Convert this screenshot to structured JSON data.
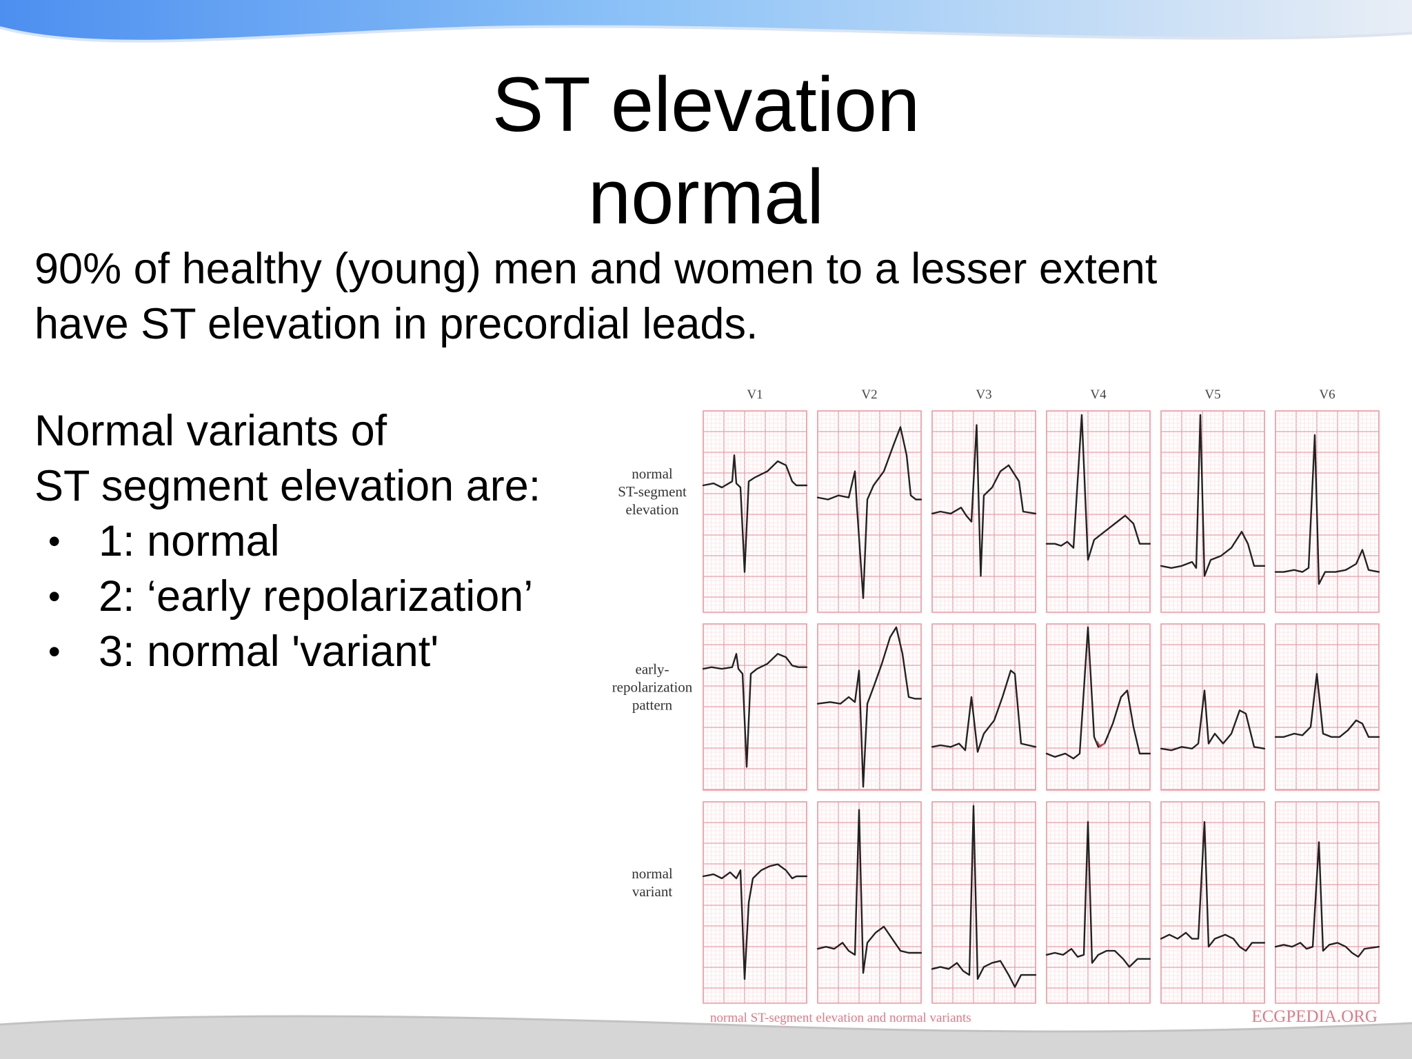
{
  "slide": {
    "title_lines": [
      "ST elevation",
      "normal"
    ],
    "intro_lines": [
      "90% of healthy (young) men and women to a lesser extent",
      "have ST elevation in precordial leads."
    ],
    "variants_heading_lines": [
      "Normal variants of",
      "ST segment elevation are:"
    ],
    "bullets": [
      "1: normal",
      "2: ‘early repolarization’",
      "3: normal 'variant'"
    ],
    "bullet_glyph": "•"
  },
  "figure": {
    "leads": [
      "V1",
      "V2",
      "V3",
      "V4",
      "V5",
      "V6"
    ],
    "rows": [
      {
        "label_lines": [
          "normal",
          "ST-segment",
          "elevation"
        ]
      },
      {
        "label_lines": [
          "early-",
          "repolarization",
          "pattern"
        ]
      },
      {
        "label_lines": [
          "normal",
          "variant"
        ]
      }
    ],
    "caption": "normal ST-segment elevation and normal variants",
    "logo": "ECGPEDIA.ORG",
    "colors": {
      "grid_major": "#ef9aa3",
      "grid_minor": "#fbe0e3",
      "trace": "#222222",
      "marker": "#e0404a",
      "accent_top": "#4d93f0"
    }
  }
}
